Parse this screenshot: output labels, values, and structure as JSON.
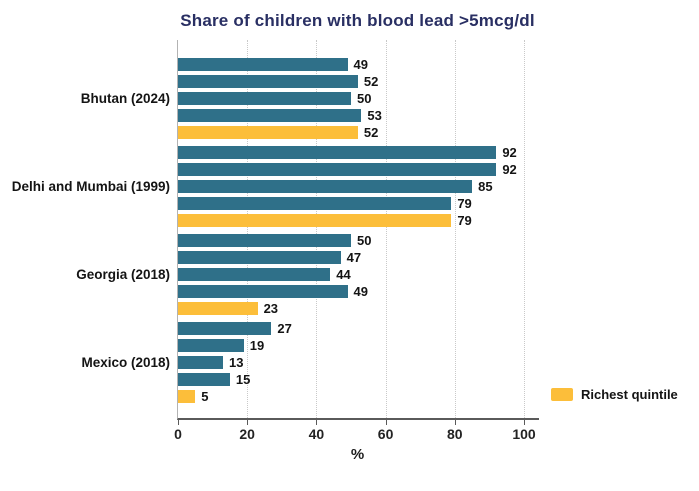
{
  "chart_data": {
    "type": "bar",
    "orientation": "horizontal",
    "title": "Share of children with blood lead >5mcg/dl",
    "xlabel": "%",
    "xlim": [
      0,
      100
    ],
    "xticks": [
      0,
      20,
      40,
      60,
      80,
      100
    ],
    "grid": "vertical-dotted",
    "groups": [
      {
        "label": "Bhutan (2024)",
        "values": [
          49,
          52,
          50,
          53,
          52
        ]
      },
      {
        "label": "Delhi and Mumbai (1999)",
        "values": [
          92,
          92,
          85,
          79,
          79
        ]
      },
      {
        "label": "Georgia (2018)",
        "values": [
          50,
          47,
          44,
          49,
          23
        ]
      },
      {
        "label": "Mexico (2018)",
        "values": [
          27,
          19,
          13,
          15,
          5
        ]
      }
    ],
    "highlight_rule": "last bar of each group is the richest quintile",
    "colors": {
      "bar_default": "#2f7089",
      "bar_highlight": "#fcbe3a",
      "title": "#292f63"
    },
    "legend": [
      {
        "label": "Richest quintile",
        "color": "#fcbe3a",
        "position": "bottom-right"
      }
    ]
  }
}
